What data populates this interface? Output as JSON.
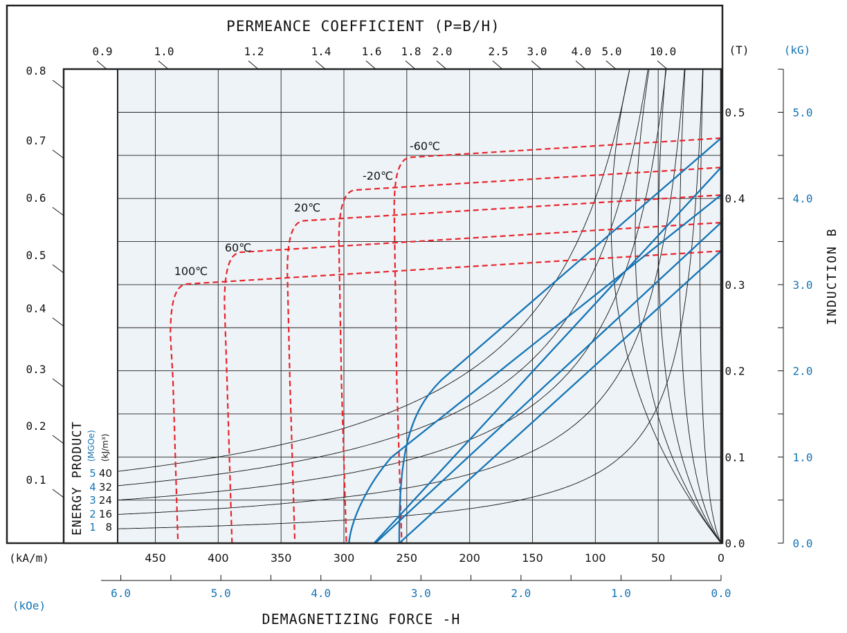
{
  "chart_data": {
    "type": "line",
    "title": "PERMEANCE COEFFICIENT (P=B/H)",
    "xlabel": "DEMAGNETIZING FORCE -H",
    "ylabel": "INDUCTION B",
    "units": {
      "x_primary": "(kA/m)",
      "x_secondary": "(kOe)",
      "y_primary": "(T)",
      "y_secondary": "(kG)",
      "energy_secondary": "(MGOe)",
      "energy_primary": "(kJ/m³)"
    },
    "energy_label": "ENERGY PRODUCT",
    "xlim_kAm": [
      480,
      0
    ],
    "ylim_T": [
      0,
      0.55
    ],
    "grid": true,
    "x_ticks_kAm": [
      "450",
      "400",
      "350",
      "300",
      "250",
      "200",
      "150",
      "100",
      "50",
      "0"
    ],
    "x_ticks_kOe": [
      "6.0",
      "5.0",
      "4.0",
      "3.0",
      "2.0",
      "1.0",
      "0.0"
    ],
    "y_ticks_T": [
      "0.0",
      "0.1",
      "0.2",
      "0.3",
      "0.4",
      "0.5"
    ],
    "y_ticks_kG": [
      "0.0",
      "1.0",
      "2.0",
      "3.0",
      "4.0",
      "5.0"
    ],
    "permeance_labels": [
      "0.9",
      "1.0",
      "1.2",
      "1.4",
      "1.6",
      "1.8",
      "2.0",
      "2.5",
      "3.0",
      "4.0",
      "5.0",
      "10.0"
    ],
    "left_scale_labels": [
      "0.8",
      "0.7",
      "0.6",
      "0.5",
      "0.4",
      "0.3",
      "0.2",
      "0.1"
    ],
    "energy_products": [
      {
        "mgoe": "5",
        "kjm3": "40"
      },
      {
        "mgoe": "4",
        "kjm3": "32"
      },
      {
        "mgoe": "3",
        "kjm3": "24"
      },
      {
        "mgoe": "2",
        "kjm3": "16"
      },
      {
        "mgoe": "1",
        "kjm3": "8"
      }
    ],
    "series": [
      {
        "name": "-60℃",
        "Br_T": 0.47,
        "Hcj_kAm": 258
      },
      {
        "name": "-20℃",
        "Br_T": 0.436,
        "Hcj_kAm": 302
      },
      {
        "name": "20℃",
        "Br_T": 0.404,
        "Hcj_kAm": 343
      },
      {
        "name": "60℃",
        "Br_T": 0.372,
        "Hcj_kAm": 393
      },
      {
        "name": "100℃",
        "Br_T": 0.339,
        "Hcj_kAm": 436
      }
    ],
    "colors": {
      "intrinsic_curves": "#e8232a",
      "normal_curves": "#1474b4",
      "secondary_labels": "#1474b4",
      "plot_background": "#eef3f7",
      "grid": "#222222"
    }
  }
}
